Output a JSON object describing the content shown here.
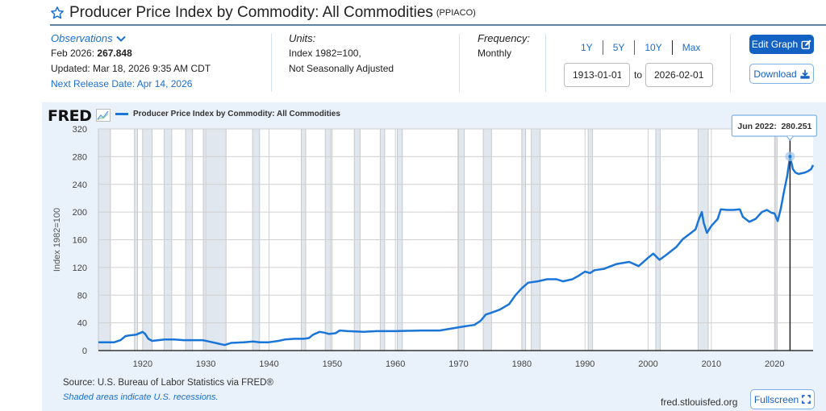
{
  "header": {
    "title": "Producer Price Index by Commodity: All Commodities",
    "series_id": "(PPIACO)"
  },
  "observations": {
    "label": "Observations",
    "latest_label": "Feb 2026:",
    "latest_value": "267.848",
    "updated": "Updated: Mar 18, 2026 9:35 AM CDT",
    "next_release": "Next Release Date: Apr 14, 2026"
  },
  "units": {
    "label": "Units:",
    "line1": "Index 1982=100,",
    "line2": "Not Seasonally Adjusted"
  },
  "frequency": {
    "label": "Frequency:",
    "value": "Monthly"
  },
  "range": {
    "options": [
      "1Y",
      "5Y",
      "10Y",
      "Max"
    ],
    "start": "1913-01-01",
    "to_label": "to",
    "end": "2026-02-01"
  },
  "buttons": {
    "edit_graph": "Edit Graph",
    "download": "Download",
    "fullscreen": "Fullscreen"
  },
  "chart_panel": {
    "logo": "FRED",
    "source": "Source: U.S. Bureau of Labor Statistics via FRED®",
    "recession_note": "Shaded areas indicate U.S. recessions.",
    "url": "fred.stlouisfed.org"
  },
  "colors": {
    "series": "#1a75d8",
    "recession": "#e1e7ee",
    "accent": "#1461c4"
  },
  "chart_data": {
    "type": "line",
    "title": "Producer Price Index by Commodity: All Commodities",
    "xlabel": "",
    "ylabel": "Index 1982=100",
    "xlim": [
      1913.0,
      2026.1
    ],
    "ylim": [
      0,
      320
    ],
    "x_ticks": [
      1920,
      1930,
      1940,
      1950,
      1960,
      1970,
      1980,
      1990,
      2000,
      2010,
      2020
    ],
    "y_ticks": [
      0,
      40,
      80,
      120,
      160,
      200,
      240,
      280,
      320
    ],
    "grid": true,
    "legend": "top-left",
    "series": [
      {
        "name": "Producer Price Index by Commodity: All Commodities",
        "x": [
          1913.0,
          1914.5,
          1915.5,
          1916.5,
          1917.3,
          1918.0,
          1919.0,
          1920.0,
          1920.4,
          1920.9,
          1921.5,
          1922.5,
          1923.5,
          1925.0,
          1926.5,
          1928.0,
          1929.5,
          1930.5,
          1931.5,
          1932.5,
          1933.0,
          1934.0,
          1936.0,
          1937.5,
          1938.5,
          1940.0,
          1941.5,
          1942.5,
          1944.0,
          1945.5,
          1946.3,
          1947.0,
          1948.0,
          1948.7,
          1949.5,
          1950.5,
          1951.2,
          1952.5,
          1955.0,
          1957.0,
          1960.0,
          1964.0,
          1967.0,
          1969.0,
          1971.0,
          1972.5,
          1973.5,
          1974.3,
          1975.0,
          1976.5,
          1978.0,
          1979.0,
          1980.0,
          1981.0,
          1982.5,
          1984.0,
          1985.5,
          1986.5,
          1988.0,
          1989.0,
          1990.0,
          1990.8,
          1991.5,
          1993.0,
          1995.0,
          1997.0,
          1998.5,
          2000.0,
          2000.8,
          2001.8,
          2003.0,
          2004.5,
          2005.5,
          2006.5,
          2007.5,
          2008.0,
          2008.5,
          2008.8,
          2009.3,
          2010.0,
          2011.0,
          2011.5,
          2012.5,
          2013.5,
          2014.5,
          2015.0,
          2016.0,
          2017.0,
          2018.0,
          2018.8,
          2019.5,
          2020.0,
          2020.5,
          2021.0,
          2021.5,
          2022.0,
          2022.45,
          2022.9,
          2023.3,
          2023.8,
          2024.3,
          2024.8,
          2025.3,
          2025.8,
          2026.1
        ],
        "values": [
          12,
          12,
          12,
          15,
          21,
          22,
          23,
          27,
          24,
          17,
          14,
          15,
          16,
          16,
          15,
          15,
          15,
          13,
          11,
          9,
          8,
          11,
          12,
          13,
          12,
          12,
          14,
          16,
          17,
          17,
          18,
          23,
          27,
          26,
          24,
          25,
          29,
          28,
          27,
          28,
          28,
          29,
          29,
          32,
          35,
          37,
          43,
          52,
          54,
          59,
          67,
          80,
          90,
          98,
          100,
          103,
          103,
          100,
          103,
          108,
          114,
          112,
          116,
          118,
          125,
          128,
          122,
          134,
          140,
          131,
          139,
          150,
          161,
          168,
          175,
          189,
          200,
          184,
          170,
          180,
          190,
          204,
          203,
          203,
          204,
          193,
          186,
          190,
          200,
          203,
          199,
          198,
          187,
          205,
          230,
          252,
          280.251,
          262,
          257,
          255,
          256,
          257,
          259,
          262,
          267.848
        ]
      }
    ],
    "recessions": [
      [
        1913.0,
        1914.9
      ],
      [
        1918.7,
        1919.2
      ],
      [
        1920.0,
        1921.5
      ],
      [
        1923.4,
        1924.6
      ],
      [
        1926.8,
        1927.9
      ],
      [
        1929.6,
        1933.2
      ],
      [
        1937.4,
        1938.5
      ],
      [
        1945.1,
        1945.8
      ],
      [
        1948.9,
        1949.8
      ],
      [
        1953.5,
        1954.4
      ],
      [
        1957.6,
        1958.3
      ],
      [
        1960.3,
        1961.1
      ],
      [
        1969.9,
        1970.9
      ],
      [
        1973.9,
        1975.2
      ],
      [
        1980.0,
        1980.6
      ],
      [
        1981.5,
        1982.9
      ],
      [
        1990.5,
        1991.2
      ],
      [
        2001.2,
        2001.9
      ],
      [
        2007.9,
        2009.5
      ],
      [
        2020.1,
        2020.4
      ]
    ],
    "annotations": [
      {
        "label": "Jun 2022:",
        "value": "280.251",
        "x": 2022.45,
        "y": 280.251
      }
    ]
  }
}
